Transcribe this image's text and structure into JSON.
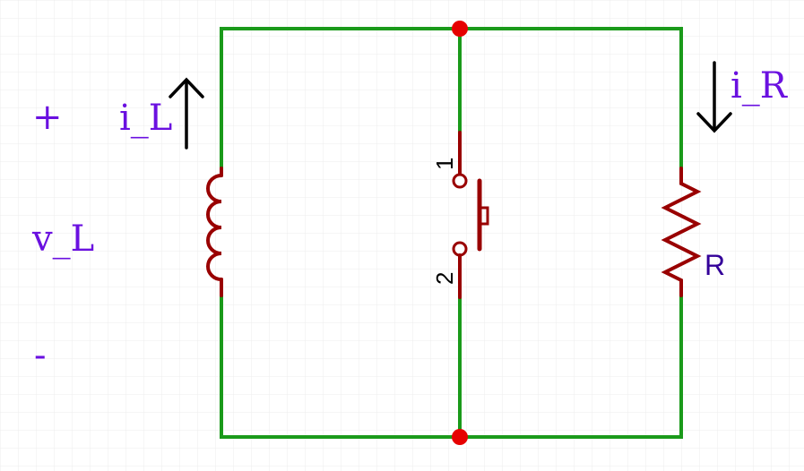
{
  "labels": {
    "plus": "+",
    "minus": "-",
    "inductor_voltage": "v_L",
    "inductor_current": "i_L",
    "resistor_current": "i_R",
    "resistor": "R",
    "switch_pin_1": "1",
    "switch_pin_2": "2"
  },
  "colors": {
    "wire": "#1a9a1a",
    "component": "#990000",
    "node": "#e60000",
    "label": "#6a10e0",
    "resistor_label": "#330099",
    "arrow": "#000000",
    "grid": "#ececec"
  },
  "components": [
    {
      "type": "inductor",
      "name": "L"
    },
    {
      "type": "push-button-switch",
      "pins": [
        "1",
        "2"
      ]
    },
    {
      "type": "resistor",
      "name": "R"
    }
  ]
}
